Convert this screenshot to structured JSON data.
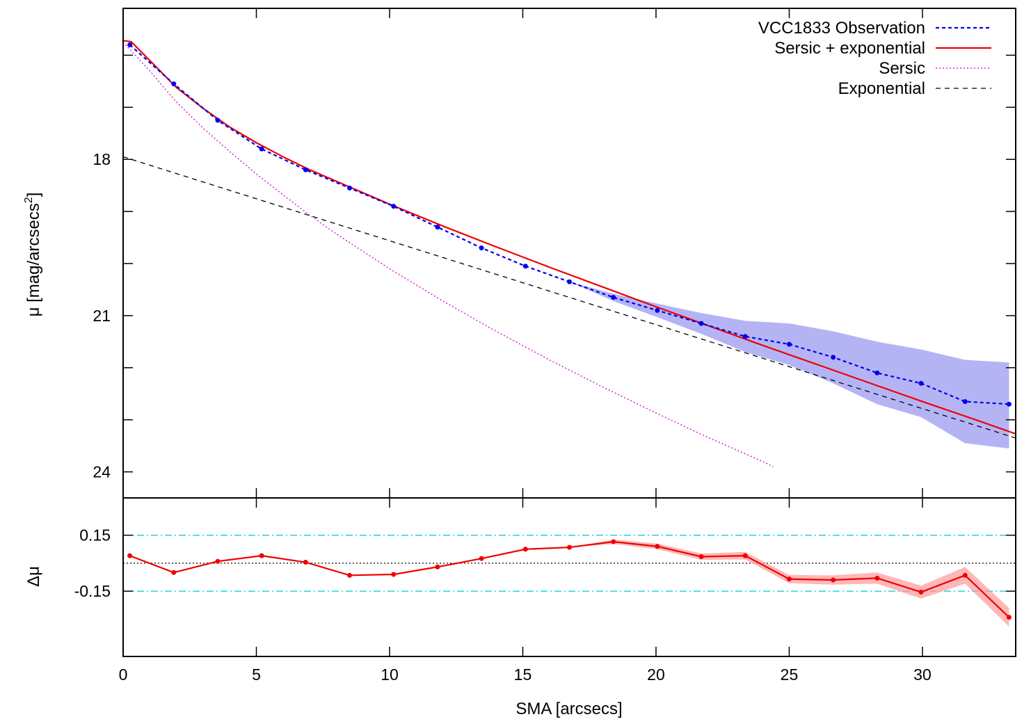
{
  "chart_data": [
    {
      "panel": "profile",
      "type": "line",
      "ylabel_prefix": "μ [mag/arcsecs",
      "ylabel_sup": "2",
      "ylabel_suffix": "]",
      "xlim": [
        0,
        33.5
      ],
      "ylim": [
        24.5,
        15.1
      ],
      "y_inverted": true,
      "xticks": [
        0,
        5,
        10,
        15,
        20,
        25,
        30
      ],
      "yticks": [
        15,
        16,
        17,
        18,
        19,
        20,
        21,
        22,
        23,
        24
      ],
      "ytick_labels": [
        {
          "v": 18,
          "label": "18"
        },
        {
          "v": 21,
          "label": "21"
        },
        {
          "v": 24,
          "label": "24"
        }
      ],
      "grid": false,
      "legend_position": "top-right",
      "series": [
        {
          "name": "VCC1833 Observation",
          "style": "dashed-points",
          "color": "#0000ee",
          "x": [
            0.25,
            1.9,
            3.55,
            5.2,
            6.85,
            8.5,
            10.15,
            11.8,
            13.45,
            15.1,
            16.75,
            18.4,
            20.05,
            21.7,
            23.35,
            25.0,
            26.65,
            28.3,
            29.95,
            31.6,
            33.25
          ],
          "y": [
            15.8,
            16.55,
            17.25,
            17.8,
            18.2,
            18.55,
            18.9,
            19.3,
            19.7,
            20.05,
            20.35,
            20.65,
            20.9,
            21.15,
            21.4,
            21.55,
            21.8,
            22.1,
            22.3,
            22.65,
            22.7
          ],
          "band_upper": [
            15.8,
            16.55,
            17.25,
            17.8,
            18.2,
            18.55,
            18.9,
            19.3,
            19.7,
            20.05,
            20.35,
            20.58,
            20.77,
            20.95,
            21.1,
            21.15,
            21.3,
            21.5,
            21.65,
            21.85,
            21.9
          ],
          "band_lower": [
            15.8,
            16.55,
            17.25,
            17.8,
            18.2,
            18.55,
            18.9,
            19.3,
            19.7,
            20.05,
            20.35,
            20.72,
            21.03,
            21.35,
            21.7,
            21.95,
            22.3,
            22.7,
            22.95,
            23.45,
            23.55
          ]
        },
        {
          "name": "Sersic + exponential",
          "style": "solid",
          "color": "#ee0000",
          "x": [
            0,
            0.3,
            1,
            2,
            3,
            4,
            5,
            6,
            7,
            8,
            10,
            12,
            14,
            16,
            18,
            20,
            22,
            24,
            26,
            28,
            30,
            32,
            33.5
          ],
          "y": [
            15.72,
            15.74,
            16.1,
            16.62,
            17.02,
            17.38,
            17.68,
            17.95,
            18.2,
            18.42,
            18.86,
            19.28,
            19.68,
            20.07,
            20.45,
            20.83,
            21.2,
            21.57,
            21.93,
            22.29,
            22.65,
            23.0,
            23.27
          ]
        },
        {
          "name": "Sersic",
          "style": "dotted",
          "color": "#cc00cc",
          "x": [
            0,
            1,
            2,
            3,
            4,
            5,
            6,
            7,
            8,
            10,
            12,
            14,
            16,
            18,
            20,
            22,
            24,
            24.4
          ],
          "y": [
            15.75,
            16.3,
            16.9,
            17.4,
            17.85,
            18.28,
            18.68,
            19.07,
            19.43,
            20.1,
            20.72,
            21.3,
            21.85,
            22.37,
            22.87,
            23.35,
            23.8,
            23.9
          ]
        },
        {
          "name": "Exponential",
          "style": "dashed",
          "color": "#000000",
          "x": [
            0,
            33.5
          ],
          "y": [
            17.95,
            23.35
          ]
        }
      ]
    },
    {
      "panel": "residual",
      "type": "line",
      "ylabel": "Δμ",
      "xlabel": "SMA [arcsecs]",
      "xlim": [
        0,
        33.5
      ],
      "ylim": [
        -0.5,
        0.35
      ],
      "xticks": [
        0,
        5,
        10,
        15,
        20,
        25,
        30
      ],
      "ytick_labels": [
        {
          "v": 0.15,
          "label": "0.15"
        },
        {
          "v": -0.15,
          "label": "-0.15"
        }
      ],
      "reference_lines": [
        {
          "y": 0.15,
          "style": "dash-dot",
          "color": "#00cccc"
        },
        {
          "y": -0.15,
          "style": "dash-dot",
          "color": "#00cccc"
        },
        {
          "y": 0.0,
          "style": "dotted",
          "color": "#000000"
        }
      ],
      "series": [
        {
          "style": "solid-points",
          "color": "#ee0000",
          "band_color": "#ff9999",
          "x": [
            0.25,
            1.9,
            3.55,
            5.2,
            6.85,
            8.5,
            10.15,
            11.8,
            13.45,
            15.1,
            16.75,
            18.4,
            20.05,
            21.7,
            23.35,
            25.0,
            26.65,
            28.3,
            29.95,
            31.6,
            33.25
          ],
          "y": [
            0.04,
            -0.05,
            0.01,
            0.04,
            0.005,
            -0.065,
            -0.06,
            -0.02,
            0.025,
            0.075,
            0.085,
            0.115,
            0.09,
            0.035,
            0.04,
            -0.085,
            -0.09,
            -0.08,
            -0.155,
            -0.065,
            -0.29
          ],
          "band_halfwidth": [
            0.0,
            0.0,
            0.0,
            0.0,
            0.0,
            0.0,
            0.0,
            0.0,
            0.0,
            0.0,
            0.0,
            0.012,
            0.015,
            0.017,
            0.02,
            0.022,
            0.025,
            0.03,
            0.035,
            0.045,
            0.05
          ]
        }
      ]
    }
  ]
}
